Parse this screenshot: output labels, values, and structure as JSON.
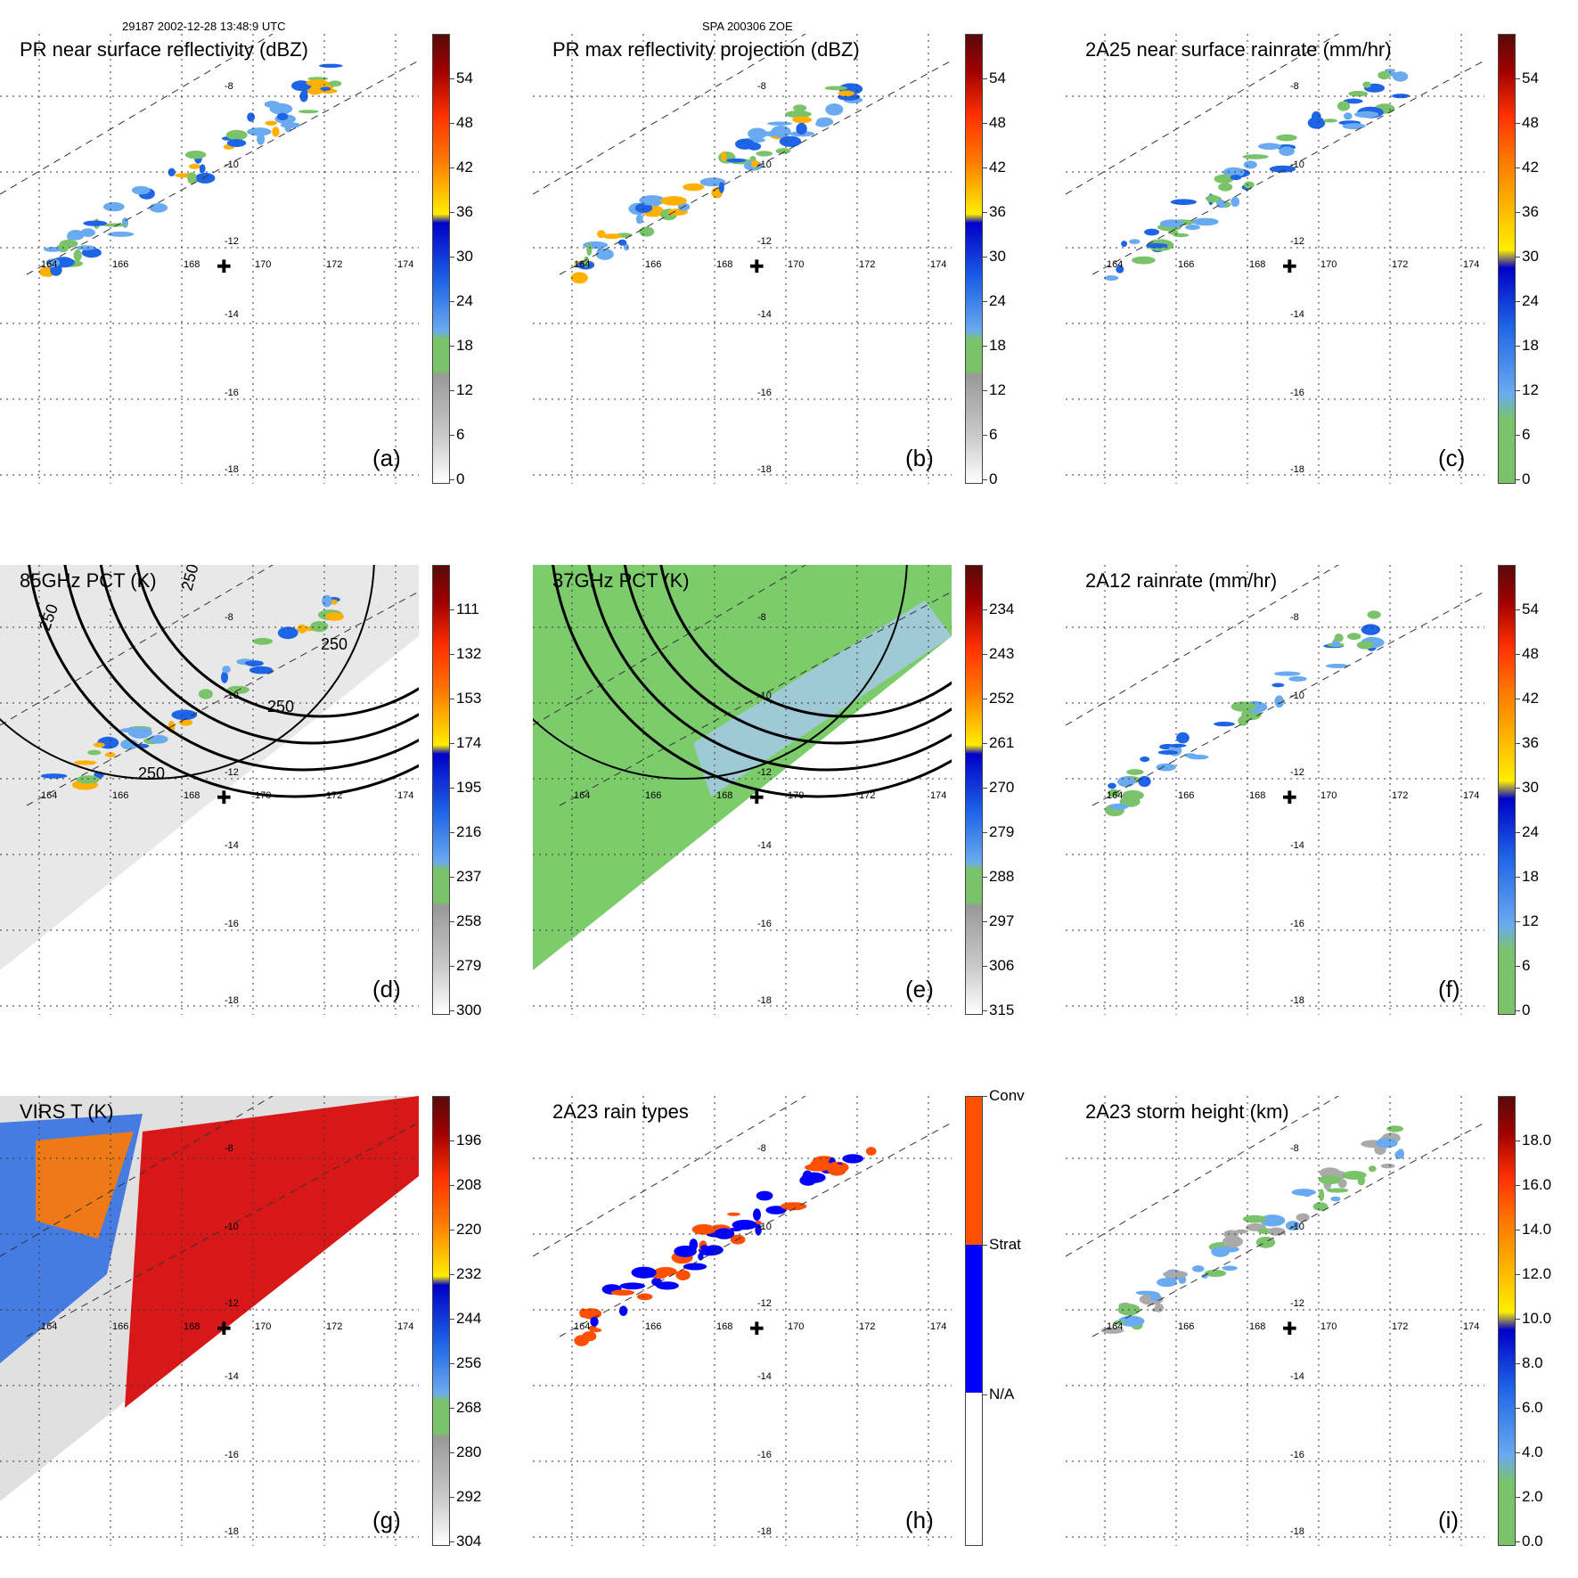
{
  "header": {
    "orbit_time": "29187 2002-12-28 13:48:9 UTC",
    "storm_id": "SPA 200306 ZOE"
  },
  "axes": {
    "lon_labels": [
      "164",
      "166",
      "168",
      "170",
      "172",
      "174"
    ],
    "lat_labels": [
      "-8",
      "-10",
      "-12",
      "-14",
      "-16",
      "-18"
    ]
  },
  "colors": {
    "reflectivity_scale": [
      "#ffffff",
      "#cccccc",
      "#999999",
      "#7ac36a",
      "#d8d8f8",
      "#6aaaf0",
      "#1e64e6",
      "#0000c8",
      "#ffee00",
      "#ffb000",
      "#ff7800",
      "#ff3000",
      "#d00000",
      "#a00000",
      "#5a0a0a"
    ],
    "raintype": [
      "#ffffff",
      "#0000ff",
      "#ff5000"
    ],
    "cross": "#000000"
  },
  "panels": [
    {
      "id": "a",
      "title": "PR near surface reflectivity (dBZ)",
      "label": "(a)",
      "ticks": [
        "54",
        "48",
        "42",
        "36",
        "30",
        "24",
        "18",
        "12",
        "6",
        "0"
      ]
    },
    {
      "id": "b",
      "title": "PR max reflectivity projection (dBZ)",
      "label": "(b)",
      "ticks": [
        "54",
        "48",
        "42",
        "36",
        "30",
        "24",
        "18",
        "12",
        "6",
        "0"
      ]
    },
    {
      "id": "c",
      "title": "2A25 near surface rainrate (mm/hr)",
      "label": "(c)",
      "ticks": [
        "54",
        "48",
        "42",
        "36",
        "30",
        "24",
        "18",
        "12",
        "6",
        "0"
      ]
    },
    {
      "id": "d",
      "title": "85GHz PCT (K)",
      "label": "(d)",
      "ticks": [
        "111",
        "132",
        "153",
        "174",
        "195",
        "216",
        "237",
        "258",
        "279",
        "300"
      ],
      "contour_labels": [
        "250",
        "250",
        "250",
        "250",
        "250"
      ]
    },
    {
      "id": "e",
      "title": "37GHz PCT (K)",
      "label": "(e)",
      "ticks": [
        "234",
        "243",
        "252",
        "261",
        "270",
        "279",
        "288",
        "297",
        "306",
        "315"
      ]
    },
    {
      "id": "f",
      "title": "2A12 rainrate (mm/hr)",
      "label": "(f)",
      "ticks": [
        "54",
        "48",
        "42",
        "36",
        "30",
        "24",
        "18",
        "12",
        "6",
        "0"
      ]
    },
    {
      "id": "g",
      "title": "VIRS T (K)",
      "label": "(g)",
      "ticks": [
        "196",
        "208",
        "220",
        "232",
        "244",
        "256",
        "268",
        "280",
        "292",
        "304"
      ]
    },
    {
      "id": "h",
      "title": "2A23 rain types",
      "label": "(h)",
      "ticks": [
        "Conv",
        "Strat",
        "N/A"
      ]
    },
    {
      "id": "i",
      "title": "2A23 storm height (km)",
      "label": "(i)",
      "ticks": [
        "18.0",
        "16.0",
        "14.0",
        "12.0",
        "10.0",
        "8.0",
        "6.0",
        "4.0",
        "2.0",
        "0.0"
      ]
    }
  ]
}
